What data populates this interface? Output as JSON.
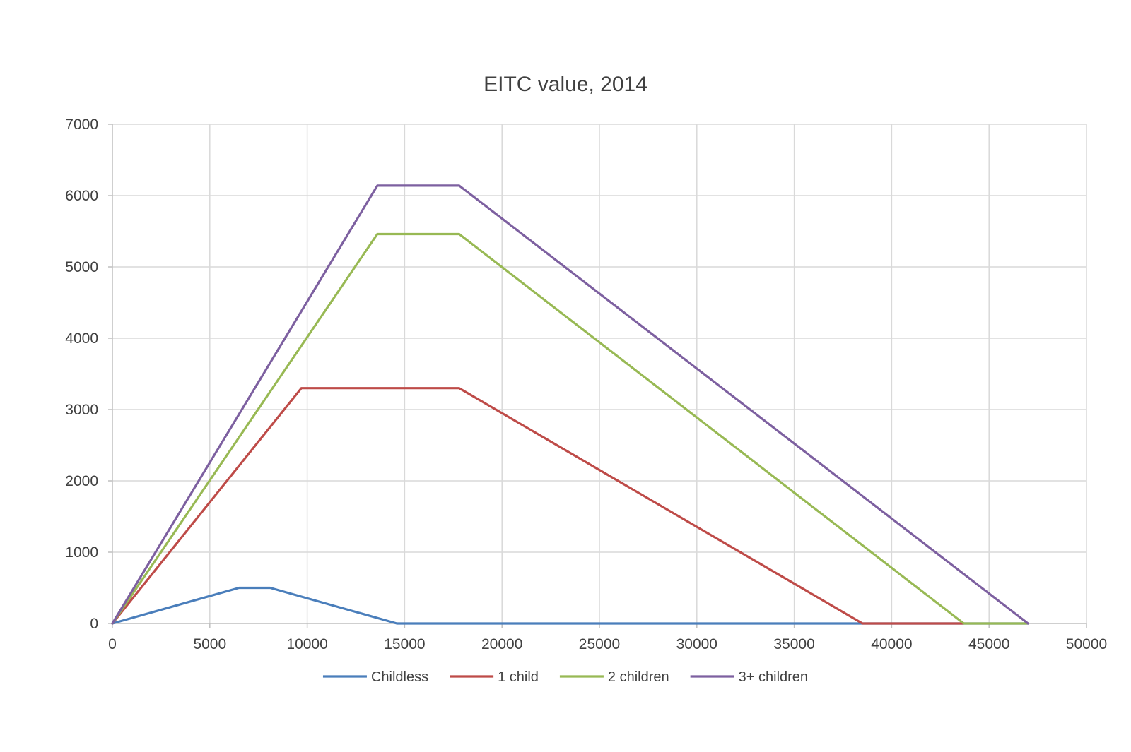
{
  "chart_data": {
    "type": "line",
    "title": "EITC value, 2014",
    "xlabel": "",
    "ylabel": "",
    "xlim": [
      0,
      50000
    ],
    "ylim": [
      0,
      7000
    ],
    "x_ticks": [
      0,
      5000,
      10000,
      15000,
      20000,
      25000,
      30000,
      35000,
      40000,
      45000,
      50000
    ],
    "y_ticks": [
      0,
      1000,
      2000,
      3000,
      4000,
      5000,
      6000,
      7000
    ],
    "grid": true,
    "legend_position": "bottom",
    "series": [
      {
        "name": "Childless",
        "color": "#4a7ebb",
        "points": [
          [
            0,
            0
          ],
          [
            6500,
            500
          ],
          [
            8100,
            500
          ],
          [
            14600,
            0
          ],
          [
            47000,
            0
          ]
        ]
      },
      {
        "name": "1 child",
        "color": "#be4b48",
        "points": [
          [
            0,
            0
          ],
          [
            9700,
            3300
          ],
          [
            17800,
            3300
          ],
          [
            38500,
            0
          ],
          [
            43700,
            0
          ]
        ]
      },
      {
        "name": "2 children",
        "color": "#98b954",
        "points": [
          [
            0,
            0
          ],
          [
            13600,
            5460
          ],
          [
            17800,
            5460
          ],
          [
            43700,
            0
          ],
          [
            47000,
            0
          ]
        ]
      },
      {
        "name": "3+ children",
        "color": "#7d60a0",
        "points": [
          [
            0,
            0
          ],
          [
            13600,
            6140
          ],
          [
            17800,
            6140
          ],
          [
            47000,
            0
          ]
        ]
      }
    ]
  }
}
